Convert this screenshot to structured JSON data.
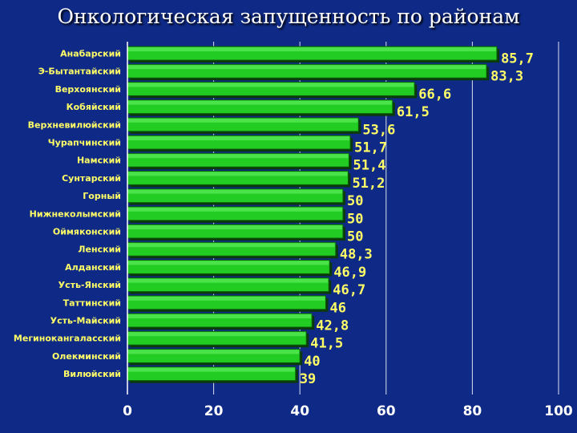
{
  "slide": {
    "title": "Онкологическая запущенность по районам"
  },
  "colors": {
    "background": "#0f2a86",
    "bar": "#22cc22",
    "label": "#ffff66",
    "tick": "#ffffff",
    "grid": "#ffffff"
  },
  "chart_data": {
    "type": "bar",
    "orientation": "horizontal",
    "title": "Онкологическая запущенность по районам",
    "xlabel": "",
    "ylabel": "",
    "xlim": [
      0,
      100
    ],
    "ticks": [
      0,
      20,
      40,
      60,
      80,
      100
    ],
    "grid": true,
    "categories": [
      "Анабарский",
      "Э-Бытантайский",
      "Верхоянский",
      "Кобяйский",
      "Верхневилюйский",
      "Чурапчинский",
      "Намский",
      "Сунтарский",
      "Горный",
      "Нижнеколымский",
      "Оймяконский",
      "Ленский",
      "Алданский",
      "Усть-Янский",
      "Таттинский",
      "Усть-Майский",
      "Мегинокангаласский",
      "Олекминский",
      "Вилюйский"
    ],
    "values": [
      85.7,
      83.3,
      66.6,
      61.5,
      53.6,
      51.7,
      51.4,
      51.2,
      50,
      50,
      50,
      48.3,
      46.9,
      46.7,
      46,
      42.8,
      41.5,
      40,
      39
    ],
    "value_labels": [
      "85,7",
      "83,3",
      "66,6",
      "61,5",
      "53,6",
      "51,7",
      "51,4",
      "51,2",
      "50",
      "50",
      "50",
      "48,3",
      "46,9",
      "46,7",
      "46",
      "42,8",
      "41,5",
      "40",
      "39"
    ]
  }
}
